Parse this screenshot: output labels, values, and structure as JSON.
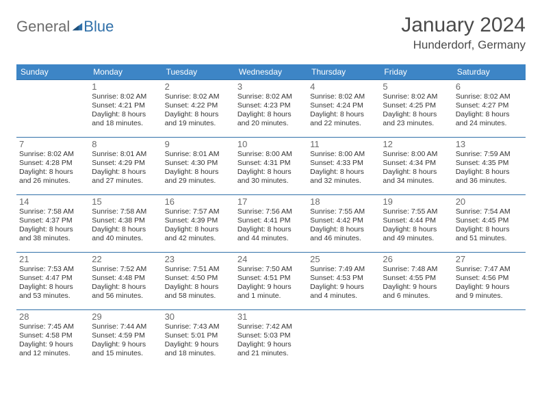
{
  "logo": {
    "part1": "General",
    "part2": "Blue"
  },
  "title": "January 2024",
  "location": "Hunderdorf, Germany",
  "colors": {
    "header_bg": "#3d85c6",
    "header_text": "#ffffff",
    "border": "#2f6fa8",
    "logo_gray": "#6c6c6c",
    "logo_blue": "#2f6fa8",
    "title_color": "#4a4a4a"
  },
  "day_names": [
    "Sunday",
    "Monday",
    "Tuesday",
    "Wednesday",
    "Thursday",
    "Friday",
    "Saturday"
  ],
  "weeks": [
    [
      null,
      {
        "n": "1",
        "sr": "Sunrise: 8:02 AM",
        "ss": "Sunset: 4:21 PM",
        "dl": "Daylight: 8 hours and 18 minutes."
      },
      {
        "n": "2",
        "sr": "Sunrise: 8:02 AM",
        "ss": "Sunset: 4:22 PM",
        "dl": "Daylight: 8 hours and 19 minutes."
      },
      {
        "n": "3",
        "sr": "Sunrise: 8:02 AM",
        "ss": "Sunset: 4:23 PM",
        "dl": "Daylight: 8 hours and 20 minutes."
      },
      {
        "n": "4",
        "sr": "Sunrise: 8:02 AM",
        "ss": "Sunset: 4:24 PM",
        "dl": "Daylight: 8 hours and 22 minutes."
      },
      {
        "n": "5",
        "sr": "Sunrise: 8:02 AM",
        "ss": "Sunset: 4:25 PM",
        "dl": "Daylight: 8 hours and 23 minutes."
      },
      {
        "n": "6",
        "sr": "Sunrise: 8:02 AM",
        "ss": "Sunset: 4:27 PM",
        "dl": "Daylight: 8 hours and 24 minutes."
      }
    ],
    [
      {
        "n": "7",
        "sr": "Sunrise: 8:02 AM",
        "ss": "Sunset: 4:28 PM",
        "dl": "Daylight: 8 hours and 26 minutes."
      },
      {
        "n": "8",
        "sr": "Sunrise: 8:01 AM",
        "ss": "Sunset: 4:29 PM",
        "dl": "Daylight: 8 hours and 27 minutes."
      },
      {
        "n": "9",
        "sr": "Sunrise: 8:01 AM",
        "ss": "Sunset: 4:30 PM",
        "dl": "Daylight: 8 hours and 29 minutes."
      },
      {
        "n": "10",
        "sr": "Sunrise: 8:00 AM",
        "ss": "Sunset: 4:31 PM",
        "dl": "Daylight: 8 hours and 30 minutes."
      },
      {
        "n": "11",
        "sr": "Sunrise: 8:00 AM",
        "ss": "Sunset: 4:33 PM",
        "dl": "Daylight: 8 hours and 32 minutes."
      },
      {
        "n": "12",
        "sr": "Sunrise: 8:00 AM",
        "ss": "Sunset: 4:34 PM",
        "dl": "Daylight: 8 hours and 34 minutes."
      },
      {
        "n": "13",
        "sr": "Sunrise: 7:59 AM",
        "ss": "Sunset: 4:35 PM",
        "dl": "Daylight: 8 hours and 36 minutes."
      }
    ],
    [
      {
        "n": "14",
        "sr": "Sunrise: 7:58 AM",
        "ss": "Sunset: 4:37 PM",
        "dl": "Daylight: 8 hours and 38 minutes."
      },
      {
        "n": "15",
        "sr": "Sunrise: 7:58 AM",
        "ss": "Sunset: 4:38 PM",
        "dl": "Daylight: 8 hours and 40 minutes."
      },
      {
        "n": "16",
        "sr": "Sunrise: 7:57 AM",
        "ss": "Sunset: 4:39 PM",
        "dl": "Daylight: 8 hours and 42 minutes."
      },
      {
        "n": "17",
        "sr": "Sunrise: 7:56 AM",
        "ss": "Sunset: 4:41 PM",
        "dl": "Daylight: 8 hours and 44 minutes."
      },
      {
        "n": "18",
        "sr": "Sunrise: 7:55 AM",
        "ss": "Sunset: 4:42 PM",
        "dl": "Daylight: 8 hours and 46 minutes."
      },
      {
        "n": "19",
        "sr": "Sunrise: 7:55 AM",
        "ss": "Sunset: 4:44 PM",
        "dl": "Daylight: 8 hours and 49 minutes."
      },
      {
        "n": "20",
        "sr": "Sunrise: 7:54 AM",
        "ss": "Sunset: 4:45 PM",
        "dl": "Daylight: 8 hours and 51 minutes."
      }
    ],
    [
      {
        "n": "21",
        "sr": "Sunrise: 7:53 AM",
        "ss": "Sunset: 4:47 PM",
        "dl": "Daylight: 8 hours and 53 minutes."
      },
      {
        "n": "22",
        "sr": "Sunrise: 7:52 AM",
        "ss": "Sunset: 4:48 PM",
        "dl": "Daylight: 8 hours and 56 minutes."
      },
      {
        "n": "23",
        "sr": "Sunrise: 7:51 AM",
        "ss": "Sunset: 4:50 PM",
        "dl": "Daylight: 8 hours and 58 minutes."
      },
      {
        "n": "24",
        "sr": "Sunrise: 7:50 AM",
        "ss": "Sunset: 4:51 PM",
        "dl": "Daylight: 9 hours and 1 minute."
      },
      {
        "n": "25",
        "sr": "Sunrise: 7:49 AM",
        "ss": "Sunset: 4:53 PM",
        "dl": "Daylight: 9 hours and 4 minutes."
      },
      {
        "n": "26",
        "sr": "Sunrise: 7:48 AM",
        "ss": "Sunset: 4:55 PM",
        "dl": "Daylight: 9 hours and 6 minutes."
      },
      {
        "n": "27",
        "sr": "Sunrise: 7:47 AM",
        "ss": "Sunset: 4:56 PM",
        "dl": "Daylight: 9 hours and 9 minutes."
      }
    ],
    [
      {
        "n": "28",
        "sr": "Sunrise: 7:45 AM",
        "ss": "Sunset: 4:58 PM",
        "dl": "Daylight: 9 hours and 12 minutes."
      },
      {
        "n": "29",
        "sr": "Sunrise: 7:44 AM",
        "ss": "Sunset: 4:59 PM",
        "dl": "Daylight: 9 hours and 15 minutes."
      },
      {
        "n": "30",
        "sr": "Sunrise: 7:43 AM",
        "ss": "Sunset: 5:01 PM",
        "dl": "Daylight: 9 hours and 18 minutes."
      },
      {
        "n": "31",
        "sr": "Sunrise: 7:42 AM",
        "ss": "Sunset: 5:03 PM",
        "dl": "Daylight: 9 hours and 21 minutes."
      },
      null,
      null,
      null
    ]
  ]
}
